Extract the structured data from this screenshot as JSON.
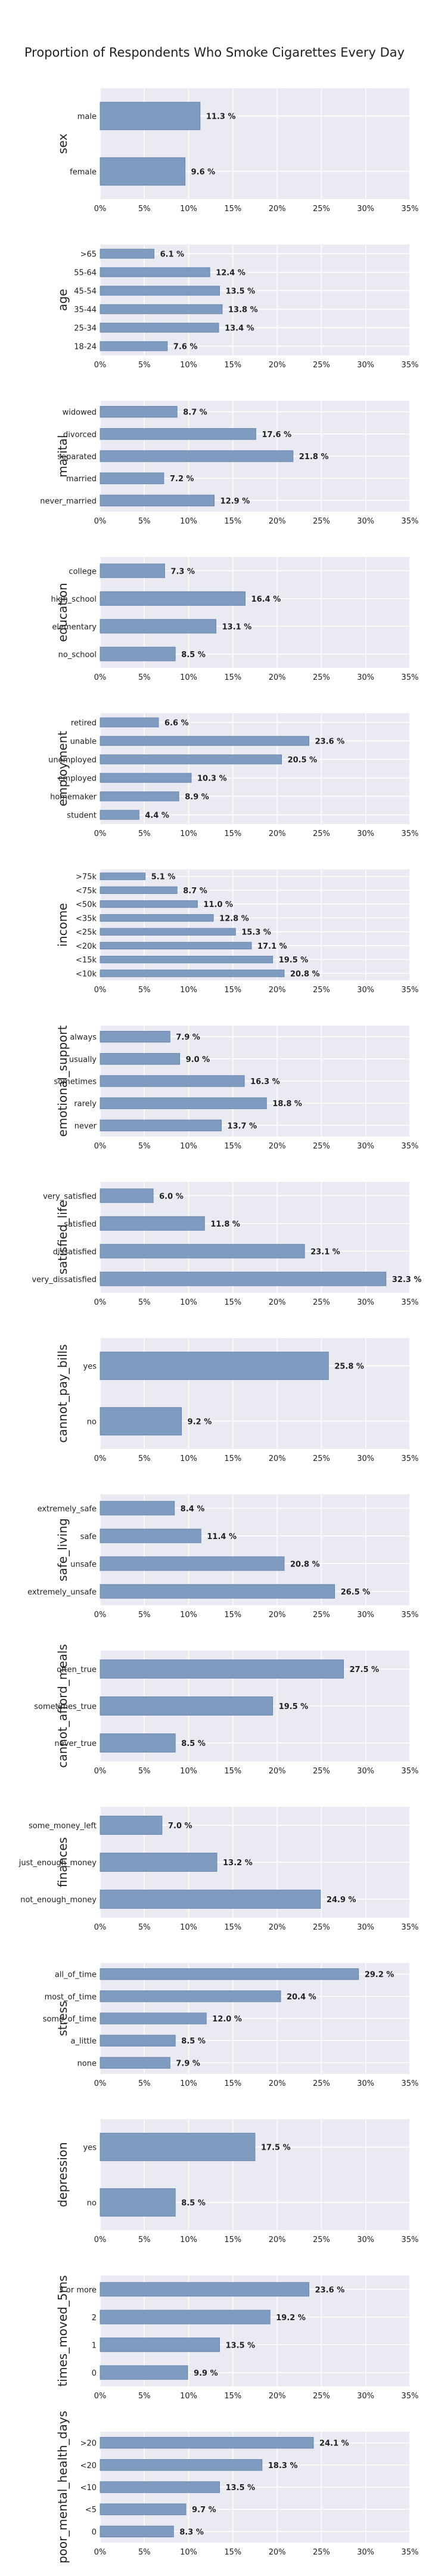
{
  "title": "Proportion of Respondents Who Smoke Cigarettes Every Day",
  "colors": {
    "bar": "#7f9bc0",
    "bar_edge": "#5f7ea8",
    "panel_bg": "#eaeaf2",
    "grid": "#ffffff",
    "text": "#222222"
  },
  "chart_data": [
    {
      "type": "bar",
      "orientation": "horizontal",
      "ylabel": "sex",
      "xlim": [
        0,
        35
      ],
      "xticks": [
        "0%",
        "5%",
        "10%",
        "15%",
        "20%",
        "25%",
        "30%",
        "35%"
      ],
      "categories": [
        "male",
        "female"
      ],
      "values": [
        11.3,
        9.6
      ],
      "labels": [
        "11.3 %",
        "9.6 %"
      ]
    },
    {
      "type": "bar",
      "orientation": "horizontal",
      "ylabel": "age",
      "xlim": [
        0,
        35
      ],
      "xticks": [
        "0%",
        "5%",
        "10%",
        "15%",
        "20%",
        "25%",
        "30%",
        "35%"
      ],
      "categories": [
        ">65",
        "55-64",
        "45-54",
        "35-44",
        "25-34",
        "18-24"
      ],
      "values": [
        6.1,
        12.4,
        13.5,
        13.8,
        13.4,
        7.6
      ],
      "labels": [
        "6.1 %",
        "12.4 %",
        "13.5 %",
        "13.8 %",
        "13.4 %",
        "7.6 %"
      ]
    },
    {
      "type": "bar",
      "orientation": "horizontal",
      "ylabel": "marital",
      "xlim": [
        0,
        35
      ],
      "xticks": [
        "0%",
        "5%",
        "10%",
        "15%",
        "20%",
        "25%",
        "30%",
        "35%"
      ],
      "categories": [
        "widowed",
        "divorced",
        "separated",
        "married",
        "never_married"
      ],
      "values": [
        8.7,
        17.6,
        21.8,
        7.2,
        12.9
      ],
      "labels": [
        "8.7 %",
        "17.6 %",
        "21.8 %",
        "7.2 %",
        "12.9 %"
      ]
    },
    {
      "type": "bar",
      "orientation": "horizontal",
      "ylabel": "education",
      "xlim": [
        0,
        35
      ],
      "xticks": [
        "0%",
        "5%",
        "10%",
        "15%",
        "20%",
        "25%",
        "30%",
        "35%"
      ],
      "categories": [
        "college",
        "high_school",
        "elementary",
        "no_school"
      ],
      "values": [
        7.3,
        16.4,
        13.1,
        8.5
      ],
      "labels": [
        "7.3 %",
        "16.4 %",
        "13.1 %",
        "8.5 %"
      ]
    },
    {
      "type": "bar",
      "orientation": "horizontal",
      "ylabel": "employment",
      "xlim": [
        0,
        35
      ],
      "xticks": [
        "0%",
        "5%",
        "10%",
        "15%",
        "20%",
        "25%",
        "30%",
        "35%"
      ],
      "categories": [
        "retired",
        "unable",
        "unemployed",
        "employed",
        "homemaker",
        "student"
      ],
      "values": [
        6.6,
        23.6,
        20.5,
        10.3,
        8.9,
        4.4
      ],
      "labels": [
        "6.6 %",
        "23.6 %",
        "20.5 %",
        "10.3 %",
        "8.9 %",
        "4.4 %"
      ]
    },
    {
      "type": "bar",
      "orientation": "horizontal",
      "ylabel": "income",
      "xlim": [
        0,
        35
      ],
      "xticks": [
        "0%",
        "5%",
        "10%",
        "15%",
        "20%",
        "25%",
        "30%",
        "35%"
      ],
      "categories": [
        ">75k",
        "<75k",
        "<50k",
        "<35k",
        "<25k",
        "<20k",
        "<15k",
        "<10k"
      ],
      "values": [
        5.1,
        8.7,
        11.0,
        12.8,
        15.3,
        17.1,
        19.5,
        20.8
      ],
      "labels": [
        "5.1 %",
        "8.7 %",
        "11.0 %",
        "12.8 %",
        "15.3 %",
        "17.1 %",
        "19.5 %",
        "20.8 %"
      ]
    },
    {
      "type": "bar",
      "orientation": "horizontal",
      "ylabel": "emotional_support",
      "xlim": [
        0,
        35
      ],
      "xticks": [
        "0%",
        "5%",
        "10%",
        "15%",
        "20%",
        "25%",
        "30%",
        "35%"
      ],
      "categories": [
        "always",
        "usually",
        "sometimes",
        "rarely",
        "never"
      ],
      "values": [
        7.9,
        9.0,
        16.3,
        18.8,
        13.7
      ],
      "labels": [
        "7.9 %",
        "9.0 %",
        "16.3 %",
        "18.8 %",
        "13.7 %"
      ]
    },
    {
      "type": "bar",
      "orientation": "horizontal",
      "ylabel": "satisfied_life",
      "xlim": [
        0,
        35
      ],
      "xticks": [
        "0%",
        "5%",
        "10%",
        "15%",
        "20%",
        "25%",
        "30%",
        "35%"
      ],
      "categories": [
        "very_satisfied",
        "satisfied",
        "dissatisfied",
        "very_dissatisfied"
      ],
      "values": [
        6.0,
        11.8,
        23.1,
        32.3
      ],
      "labels": [
        "6.0 %",
        "11.8 %",
        "23.1 %",
        "32.3 %"
      ]
    },
    {
      "type": "bar",
      "orientation": "horizontal",
      "ylabel": "cannot_pay_bills",
      "xlim": [
        0,
        35
      ],
      "xticks": [
        "0%",
        "5%",
        "10%",
        "15%",
        "20%",
        "25%",
        "30%",
        "35%"
      ],
      "categories": [
        "yes",
        "no"
      ],
      "values": [
        25.8,
        9.2
      ],
      "labels": [
        "25.8 %",
        "9.2 %"
      ]
    },
    {
      "type": "bar",
      "orientation": "horizontal",
      "ylabel": "safe_living",
      "xlim": [
        0,
        35
      ],
      "xticks": [
        "0%",
        "5%",
        "10%",
        "15%",
        "20%",
        "25%",
        "30%",
        "35%"
      ],
      "categories": [
        "extremely_safe",
        "safe",
        "unsafe",
        "extremely_unsafe"
      ],
      "values": [
        8.4,
        11.4,
        20.8,
        26.5
      ],
      "labels": [
        "8.4 %",
        "11.4 %",
        "20.8 %",
        "26.5 %"
      ]
    },
    {
      "type": "bar",
      "orientation": "horizontal",
      "ylabel": "cannot_afford_meals",
      "xlim": [
        0,
        35
      ],
      "xticks": [
        "0%",
        "5%",
        "10%",
        "15%",
        "20%",
        "25%",
        "30%",
        "35%"
      ],
      "categories": [
        "often_true",
        "sometimes_true",
        "never_true"
      ],
      "values": [
        27.5,
        19.5,
        8.5
      ],
      "labels": [
        "27.5 %",
        "19.5 %",
        "8.5 %"
      ]
    },
    {
      "type": "bar",
      "orientation": "horizontal",
      "ylabel": "finances",
      "xlim": [
        0,
        35
      ],
      "xticks": [
        "0%",
        "5%",
        "10%",
        "15%",
        "20%",
        "25%",
        "30%",
        "35%"
      ],
      "categories": [
        "some_money_left",
        "just_enough_money",
        "not_enough_money"
      ],
      "values": [
        7.0,
        13.2,
        24.9
      ],
      "labels": [
        "7.0 %",
        "13.2 %",
        "24.9 %"
      ]
    },
    {
      "type": "bar",
      "orientation": "horizontal",
      "ylabel": "stress",
      "xlim": [
        0,
        35
      ],
      "xticks": [
        "0%",
        "5%",
        "10%",
        "15%",
        "20%",
        "25%",
        "30%",
        "35%"
      ],
      "categories": [
        "all_of_time",
        "most_of_time",
        "some_of_time",
        "a_little",
        "none"
      ],
      "values": [
        29.2,
        20.4,
        12.0,
        8.5,
        7.9
      ],
      "labels": [
        "29.2 %",
        "20.4 %",
        "12.0 %",
        "8.5 %",
        "7.9 %"
      ]
    },
    {
      "type": "bar",
      "orientation": "horizontal",
      "ylabel": "depression",
      "xlim": [
        0,
        35
      ],
      "xticks": [
        "0%",
        "5%",
        "10%",
        "15%",
        "20%",
        "25%",
        "30%",
        "35%"
      ],
      "categories": [
        "yes",
        "no"
      ],
      "values": [
        17.5,
        8.5
      ],
      "labels": [
        "17.5 %",
        "8.5 %"
      ]
    },
    {
      "type": "bar",
      "orientation": "horizontal",
      "ylabel": "times_moved_5ms",
      "xlim": [
        0,
        35
      ],
      "xticks": [
        "0%",
        "5%",
        "10%",
        "15%",
        "20%",
        "25%",
        "30%",
        "35%"
      ],
      "categories": [
        "3 or more",
        "2",
        "1",
        "0"
      ],
      "values": [
        23.6,
        19.2,
        13.5,
        9.9
      ],
      "labels": [
        "23.6 %",
        "19.2 %",
        "13.5 %",
        "9.9 %"
      ]
    },
    {
      "type": "bar",
      "orientation": "horizontal",
      "ylabel": "poor_mental_health_days",
      "xlim": [
        0,
        35
      ],
      "xticks": [
        "0%",
        "5%",
        "10%",
        "15%",
        "20%",
        "25%",
        "30%",
        "35%"
      ],
      "categories": [
        ">20",
        "<20",
        "<10",
        "<5",
        "0"
      ],
      "values": [
        24.1,
        18.3,
        13.5,
        9.7,
        8.3
      ],
      "labels": [
        "24.1 %",
        "18.3 %",
        "13.5 %",
        "9.7 %",
        "8.3 %"
      ]
    }
  ]
}
